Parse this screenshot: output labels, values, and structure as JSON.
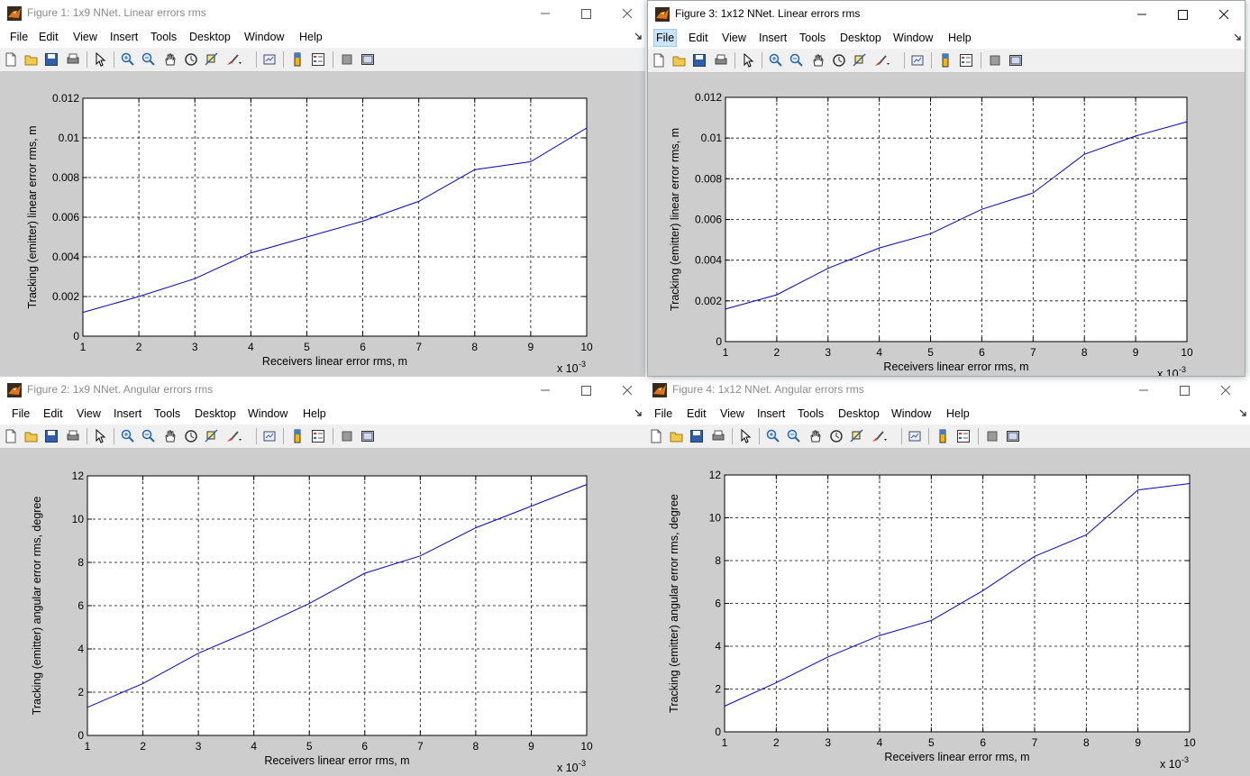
{
  "menu": [
    "File",
    "Edit",
    "View",
    "Insert",
    "Tools",
    "Desktop",
    "Window",
    "Help"
  ],
  "colors": {
    "figure_bg": "#cdcdcd",
    "line": "#0000cc",
    "axes_bg": "#ffffff"
  },
  "toolbar_icons": [
    "new-figure-icon",
    "open-file-icon",
    "save-icon",
    "print-icon",
    "edit-plot-pointer-icon",
    "zoom-in-icon",
    "zoom-out-icon",
    "pan-hand-icon",
    "rotate-3d-icon",
    "data-cursor-icon",
    "brush-icon",
    "link-plot-icon",
    "colorbar-icon",
    "legend-icon",
    "hide-plot-tools-icon",
    "show-plot-tools-icon"
  ],
  "figures": [
    {
      "title": "Figure 1: 1x9 NNet. Linear errors rms",
      "chart_data": {
        "type": "line",
        "x": [
          1,
          2,
          3,
          4,
          5,
          6,
          7,
          8,
          9,
          10
        ],
        "x_multiplier": "x 10",
        "x_exponent": "-3",
        "x_ticks": [
          "1",
          "2",
          "3",
          "4",
          "5",
          "6",
          "7",
          "8",
          "9",
          "10"
        ],
        "xlim": [
          1,
          10
        ],
        "y": [
          0.0012,
          0.002,
          0.0029,
          0.0042,
          0.005,
          0.0058,
          0.0068,
          0.0084,
          0.0088,
          0.0105
        ],
        "ylim": [
          0,
          0.012
        ],
        "y_ticks": [
          "0",
          "0.002",
          "0.004",
          "0.006",
          "0.008",
          "0.01",
          "0.012"
        ],
        "xlabel": "Receivers linear error rms, m",
        "ylabel": "Tracking (emitter) linear error rms, m",
        "grid": true
      }
    },
    {
      "title": "Figure 2: 1x9 NNet. Angular errors rms",
      "chart_data": {
        "type": "line",
        "x": [
          1,
          2,
          3,
          4,
          5,
          6,
          7,
          8,
          9,
          10
        ],
        "x_multiplier": "x 10",
        "x_exponent": "-3",
        "x_ticks": [
          "1",
          "2",
          "3",
          "4",
          "5",
          "6",
          "7",
          "8",
          "9",
          "10"
        ],
        "xlim": [
          1,
          10
        ],
        "y": [
          1.3,
          2.4,
          3.8,
          4.9,
          6.1,
          7.5,
          8.3,
          9.6,
          10.6,
          11.6
        ],
        "ylim": [
          0,
          12
        ],
        "y_ticks": [
          "0",
          "2",
          "4",
          "6",
          "8",
          "10",
          "12"
        ],
        "xlabel": "Receivers linear error rms, m",
        "ylabel": "Tracking (emitter) angular error rms, degree",
        "grid": true
      }
    },
    {
      "title": "Figure 3: 1x12 NNet. Linear errors rms",
      "chart_data": {
        "type": "line",
        "x": [
          1,
          2,
          3,
          4,
          5,
          6,
          7,
          8,
          9,
          10
        ],
        "x_multiplier": "x 10",
        "x_exponent": "-3",
        "x_ticks": [
          "1",
          "2",
          "3",
          "4",
          "5",
          "6",
          "7",
          "8",
          "9",
          "10"
        ],
        "xlim": [
          1,
          10
        ],
        "y": [
          0.0016,
          0.0023,
          0.0036,
          0.0046,
          0.0053,
          0.0065,
          0.0073,
          0.0092,
          0.0101,
          0.0108
        ],
        "ylim": [
          0,
          0.012
        ],
        "y_ticks": [
          "0",
          "0.002",
          "0.004",
          "0.006",
          "0.008",
          "0.01",
          "0.012"
        ],
        "xlabel": "Receivers linear error rms, m",
        "ylabel": "Tracking (emitter) linear error rms, m",
        "grid": true
      }
    },
    {
      "title": "Figure 4: 1x12 NNet. Angular errors rms",
      "chart_data": {
        "type": "line",
        "x": [
          1,
          2,
          3,
          4,
          5,
          6,
          7,
          8,
          9,
          10
        ],
        "x_multiplier": "x 10",
        "x_exponent": "-3",
        "x_ticks": [
          "1",
          "2",
          "3",
          "4",
          "5",
          "6",
          "7",
          "8",
          "9",
          "10"
        ],
        "xlim": [
          1,
          10
        ],
        "y": [
          1.2,
          2.3,
          3.5,
          4.5,
          5.2,
          6.6,
          8.2,
          9.2,
          11.3,
          11.6
        ],
        "ylim": [
          0,
          12
        ],
        "y_ticks": [
          "0",
          "2",
          "4",
          "6",
          "8",
          "10",
          "12"
        ],
        "xlabel": "Receivers linear error rms, m",
        "ylabel": "Tracking (emitter) angular error rms, degree",
        "grid": true
      }
    }
  ]
}
